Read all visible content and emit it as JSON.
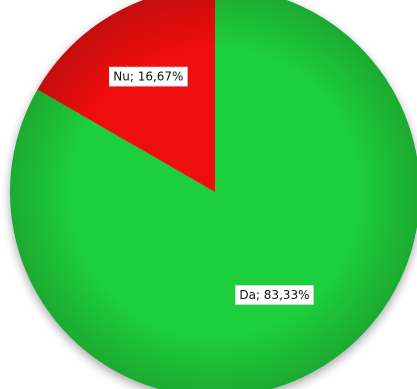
{
  "chart_data": {
    "type": "pie",
    "title": "",
    "slices": [
      {
        "label": "Da",
        "value": 83.33,
        "color": "#1fcf3c",
        "data_label": "Da; 83,33%"
      },
      {
        "label": "Nu",
        "value": 16.67,
        "color": "#f01010",
        "data_label": "Nu; 16,67%"
      }
    ],
    "start": "12 o'clock",
    "direction": "clockwise",
    "legend": "none"
  }
}
